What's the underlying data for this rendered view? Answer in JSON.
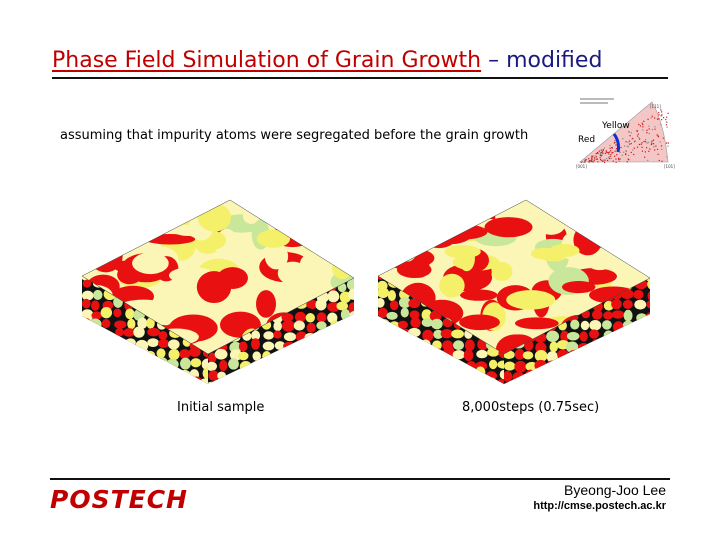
{
  "slide": {
    "title_highlight": "Phase Field Simulation of Grain Growth",
    "title_dash": " – ",
    "title_rest": "modified",
    "subtitle": "assuming that impurity atoms were segregated before the grain growth"
  },
  "pole_figure": {
    "label_yellow": "Yellow",
    "label_red": "Red",
    "corner_top": "[111]",
    "corner_bl": "[001]",
    "corner_br": "[101]"
  },
  "panels": [
    {
      "caption": "Initial sample"
    },
    {
      "caption": "8,000steps (0.75sec)"
    }
  ],
  "footer": {
    "logo": "POSTECH",
    "author": "Byeong-Joo Lee",
    "url": "http://cmse.postech.ac.kr"
  },
  "colors": {
    "red": "#e81010",
    "yellow": "#f5f06a",
    "pale": "#fbf5b6",
    "green": "#c9e79a",
    "grain_border": "#111111",
    "logo_red": "#c00000"
  }
}
